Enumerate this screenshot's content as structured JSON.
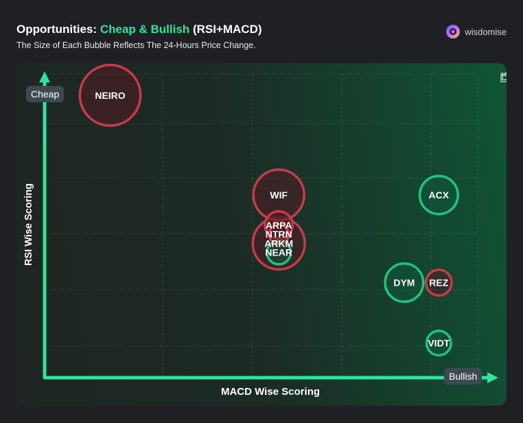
{
  "header": {
    "title_prefix": "Opportunities:",
    "title_accent": "Cheap & Bullish",
    "title_suffix": "(RSI+MACD)",
    "subtitle": "The Size of Each Bubble Reflects The 24-Hours Price Change.",
    "brand": "wisdomise"
  },
  "toolbar": {
    "icons": [
      "crop-icon",
      "rotate-icon"
    ]
  },
  "chart_data": {
    "type": "scatter",
    "title": "Opportunities: Cheap & Bullish (RSI+MACD)",
    "subtitle": "The Size of Each Bubble Reflects The 24-Hours Price Change.",
    "xlabel": "MACD Wise Scoring",
    "ylabel": "RSI Wise Scoring",
    "x_end_label": "Bullish",
    "y_end_label": "Cheap",
    "xlim": [
      0,
      1
    ],
    "ylim": [
      0,
      1
    ],
    "grid": true,
    "colors": {
      "positive": "#20c383",
      "negative": "#c83b4a",
      "axis": "#2ee59d"
    },
    "points": [
      {
        "label": "NEIRO",
        "x": 0.15,
        "y": 0.93,
        "size": 0.92,
        "change": "negative"
      },
      {
        "label": "WIF",
        "x": 0.54,
        "y": 0.6,
        "size": 0.77,
        "change": "negative"
      },
      {
        "label": "ARPA",
        "x": 0.54,
        "y": 0.5,
        "size": 0.42,
        "change": "negative"
      },
      {
        "label": "NTRN",
        "x": 0.54,
        "y": 0.47,
        "size": 0.3,
        "change": "negative"
      },
      {
        "label": "ARKM",
        "x": 0.54,
        "y": 0.44,
        "size": 0.79,
        "change": "negative"
      },
      {
        "label": "NEAR",
        "x": 0.54,
        "y": 0.41,
        "size": 0.36,
        "change": "positive"
      },
      {
        "label": "ACX",
        "x": 0.91,
        "y": 0.6,
        "size": 0.58,
        "change": "positive"
      },
      {
        "label": "DYM",
        "x": 0.83,
        "y": 0.31,
        "size": 0.58,
        "change": "positive"
      },
      {
        "label": "REZ",
        "x": 0.91,
        "y": 0.31,
        "size": 0.39,
        "change": "negative"
      },
      {
        "label": "VIDT",
        "x": 0.91,
        "y": 0.11,
        "size": 0.37,
        "change": "positive"
      }
    ]
  }
}
